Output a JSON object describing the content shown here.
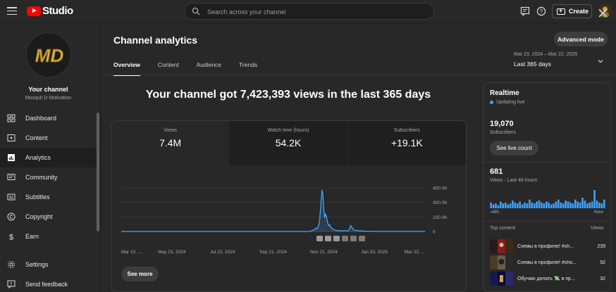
{
  "app": {
    "logo_text": "Studio",
    "search_placeholder": "Search across your channel",
    "create_label": "Create"
  },
  "channel": {
    "name": "Your channel",
    "subname": "Mosquit D Motivation",
    "avatar_letters": "MD"
  },
  "sidebar": {
    "items": [
      {
        "label": "Dashboard",
        "icon": "dashboard-icon",
        "active": false
      },
      {
        "label": "Content",
        "icon": "content-icon",
        "active": false
      },
      {
        "label": "Analytics",
        "icon": "analytics-icon",
        "active": true
      },
      {
        "label": "Community",
        "icon": "community-icon",
        "active": false
      },
      {
        "label": "Subtitles",
        "icon": "subtitles-icon",
        "active": false
      },
      {
        "label": "Copyright",
        "icon": "copyright-icon",
        "active": false
      },
      {
        "label": "Earn",
        "icon": "earn-icon",
        "active": false
      }
    ],
    "bottom": [
      {
        "label": "Settings",
        "icon": "gear-icon"
      },
      {
        "label": "Send feedback",
        "icon": "feedback-icon"
      }
    ]
  },
  "header": {
    "title": "Channel analytics",
    "advanced_label": "Advanced mode",
    "tabs": [
      "Overview",
      "Content",
      "Audience",
      "Trends"
    ],
    "active_tab": "Overview",
    "date_range": "Mar 23, 2024 – Mar 22, 2025",
    "date_label": "Last 365 days"
  },
  "overview": {
    "headline": "Your channel got 7,423,393 views in the last 365 days",
    "metrics": [
      {
        "label": "Views",
        "value": "7.4M",
        "selected": true
      },
      {
        "label": "Watch time (hours)",
        "value": "54.2K",
        "selected": false
      },
      {
        "label": "Subscribers",
        "value": "+19.1K",
        "selected": false
      }
    ],
    "see_more_label": "See more"
  },
  "chart_data": {
    "type": "line",
    "series": [
      {
        "values": [
          0,
          0,
          0,
          0,
          0,
          0,
          0,
          0,
          0,
          0,
          0,
          0,
          0,
          0,
          0,
          0,
          0,
          0,
          0,
          0,
          0,
          0,
          0,
          0,
          0,
          0,
          0,
          0,
          0,
          0,
          0,
          0,
          0,
          0,
          0,
          0,
          0,
          0,
          0,
          0,
          0,
          0,
          0,
          0,
          0,
          0,
          0,
          0,
          0,
          0,
          0,
          0,
          0,
          0,
          0,
          0,
          0,
          0,
          0,
          0,
          0,
          0,
          0,
          0,
          0,
          0,
          0,
          0,
          0,
          0,
          0,
          0,
          0,
          0,
          0,
          0,
          0,
          0,
          0,
          0,
          0,
          0,
          0,
          0,
          0,
          0,
          0,
          0,
          0,
          0,
          0,
          0,
          0,
          0,
          0,
          0,
          0,
          0,
          0,
          0,
          0,
          0,
          0,
          0,
          0,
          0,
          0,
          0,
          0,
          0,
          0,
          0,
          0,
          0,
          0,
          0,
          0,
          0,
          0,
          0,
          0,
          0,
          0,
          0,
          0,
          0,
          0,
          0,
          0,
          0,
          0,
          0,
          0,
          0,
          0,
          0,
          0,
          0,
          0,
          0,
          0,
          0,
          0,
          0,
          0,
          0,
          0,
          0,
          0,
          0,
          0,
          0,
          0,
          0,
          0,
          0,
          0,
          0,
          0,
          0,
          0,
          0,
          0,
          0,
          0,
          0,
          0,
          0,
          0,
          0,
          0,
          0,
          0,
          0,
          0,
          0,
          0,
          0,
          0,
          0,
          0,
          0,
          0,
          0,
          0,
          0,
          0,
          0,
          0,
          0,
          0,
          0,
          0,
          0,
          0,
          0,
          0,
          0,
          0,
          0,
          0,
          0,
          0,
          0,
          0,
          0,
          0,
          0,
          0,
          0,
          0,
          0,
          0,
          0,
          0,
          0,
          0,
          0,
          0,
          0,
          0,
          0,
          1000,
          2000,
          4000,
          6000,
          9000,
          12000,
          15000,
          22000,
          30000,
          35000,
          28000,
          40000,
          60000,
          110000,
          210000,
          330000,
          430000,
          380000,
          230000,
          140000,
          180000,
          160000,
          110000,
          80000,
          60000,
          70000,
          50000,
          40000,
          30000,
          25000,
          20000,
          15000,
          12000,
          10000,
          9000,
          8000,
          10000,
          9000,
          8000,
          7000,
          6000,
          6000,
          8000,
          9000,
          7000,
          6000,
          5000,
          8000,
          20000,
          40000,
          60000,
          50000,
          30000,
          20000,
          15000,
          12000,
          10000,
          9000,
          8000,
          7000,
          6000,
          6000,
          5000,
          5000,
          4000,
          4000,
          4000,
          3000,
          3000,
          3000,
          3000,
          2000,
          2000,
          2000,
          2000,
          2000,
          2000,
          2000,
          2000,
          2000,
          1000,
          1000,
          1000,
          1000,
          1000,
          1000,
          1000,
          1000,
          1000,
          1000,
          1000,
          1000,
          1000,
          1000,
          1000,
          1000,
          1000,
          1000,
          1000,
          1000,
          1000,
          1000,
          1000,
          1000,
          1000,
          1000,
          1000,
          1000,
          1000,
          1000,
          1000,
          1000,
          1000,
          1000,
          1000,
          1000,
          1000,
          1000,
          1000,
          1000,
          1000,
          1000,
          1000,
          1000,
          1000,
          1000,
          1000,
          1000,
          1000,
          1000,
          1000,
          1000,
          1000,
          1000,
          1000,
          1000,
          1000,
          1000,
          1000
        ]
      }
    ],
    "x_tick_labels": [
      "Mar 23, ...",
      "May 23, 2024",
      "Jul 22, 2024",
      "Sep 21, 2024",
      "Nov 21, 2024",
      "Jan 20, 2025",
      "Mar 22, ..."
    ],
    "y_tick_labels": [
      "450.0K",
      "300.0K",
      "150.0K",
      "0"
    ],
    "ylim": [
      0,
      450000
    ],
    "grid": true,
    "line_color": "#3ea6ff"
  },
  "realtime": {
    "title": "Realtime",
    "status": "Updating live",
    "subscribers": "19,070",
    "subscribers_label": "Subscribers",
    "live_count_label": "See live count",
    "views": "681",
    "views_label": "Views · Last 48 hours",
    "bar_values": [
      6,
      4,
      5,
      3,
      7,
      5,
      6,
      4,
      5,
      8,
      6,
      5,
      7,
      4,
      6,
      5,
      9,
      6,
      5,
      7,
      8,
      6,
      5,
      7,
      6,
      4,
      5,
      7,
      9,
      6,
      5,
      8,
      7,
      6,
      5,
      9,
      7,
      6,
      11,
      8,
      5,
      6,
      7,
      19,
      8,
      6,
      5,
      9
    ],
    "axis_left": "-48h",
    "axis_right": "Now",
    "top_content_label": "Top content",
    "top_views_label": "Views",
    "top_content": [
      {
        "title": "Схемы в профиле! #sh...",
        "views": "239",
        "thumb": [
          "#2a1a1a",
          "#8a1a1a",
          "#3a2a1a"
        ]
      },
      {
        "title": "Схемы в профиле! #sho...",
        "views": "92",
        "thumb": [
          "#4a3a2a",
          "#6a5a4a",
          "#2a2a2a"
        ]
      },
      {
        "title": "Обучаю делать 💸 в пр...",
        "views": "32",
        "thumb": [
          "#1a1a4a",
          "#0a0a3a",
          "#2a2a6a"
        ]
      }
    ]
  }
}
